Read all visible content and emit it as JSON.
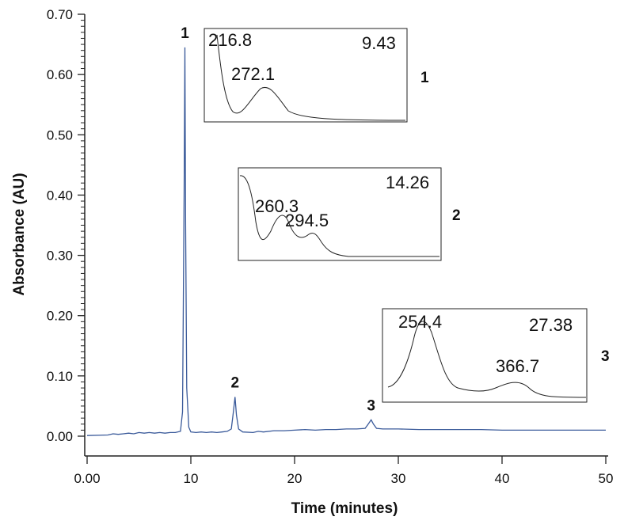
{
  "chart_data": {
    "type": "line",
    "xlabel": "Time (minutes)",
    "ylabel": "Absorbance (AU)",
    "xlim": [
      0,
      50
    ],
    "ylim": [
      0,
      0.7
    ],
    "x_ticks": [
      "0.00",
      "10",
      "20",
      "30",
      "40",
      "50"
    ],
    "y_ticks": [
      "0.00",
      "0.10",
      "0.20",
      "0.30",
      "0.40",
      "0.50",
      "0.60",
      "0.70"
    ],
    "line_color": "#3a5a9a",
    "grid": false,
    "series": [
      {
        "x": [
          0,
          2,
          2.5,
          3,
          3.5,
          4,
          4.5,
          5,
          5.5,
          6,
          6.5,
          7,
          7.5,
          8,
          8.5,
          9,
          9.2,
          9.35,
          9.43,
          9.5,
          9.6,
          9.8,
          10,
          10.5,
          11,
          11.5,
          12,
          12.5,
          13,
          13.5,
          13.9,
          14.1,
          14.26,
          14.4,
          14.6,
          15,
          16,
          16.5,
          17,
          18,
          19,
          20,
          21,
          22,
          23,
          24,
          25,
          26,
          26.8,
          27.1,
          27.38,
          27.6,
          27.9,
          28.5,
          30,
          32,
          35,
          38,
          40,
          42,
          45,
          48,
          50
        ],
        "y": [
          0.001,
          0.002,
          0.004,
          0.003,
          0.004,
          0.005,
          0.004,
          0.006,
          0.005,
          0.006,
          0.005,
          0.006,
          0.005,
          0.006,
          0.006,
          0.008,
          0.04,
          0.4,
          0.645,
          0.35,
          0.08,
          0.015,
          0.007,
          0.006,
          0.007,
          0.006,
          0.007,
          0.006,
          0.007,
          0.008,
          0.012,
          0.04,
          0.065,
          0.035,
          0.012,
          0.007,
          0.006,
          0.008,
          0.007,
          0.009,
          0.009,
          0.01,
          0.011,
          0.01,
          0.011,
          0.011,
          0.012,
          0.012,
          0.013,
          0.02,
          0.027,
          0.02,
          0.013,
          0.012,
          0.012,
          0.011,
          0.011,
          0.011,
          0.01,
          0.01,
          0.01,
          0.01,
          0.01
        ]
      }
    ],
    "peak_labels": [
      {
        "label": "1",
        "x": 9.43,
        "y": 0.645
      },
      {
        "label": "2",
        "x": 14.26,
        "y": 0.065
      },
      {
        "label": "3",
        "x": 27.38,
        "y": 0.027
      }
    ],
    "insets": [
      {
        "id": "1",
        "retention_time": "9.43",
        "lambda_labels": [
          "216.8",
          "272.1"
        ]
      },
      {
        "id": "2",
        "retention_time": "14.26",
        "lambda_labels": [
          "260.3",
          "294.5"
        ]
      },
      {
        "id": "3",
        "retention_time": "27.38",
        "lambda_labels": [
          "254.4",
          "366.7"
        ]
      }
    ]
  }
}
